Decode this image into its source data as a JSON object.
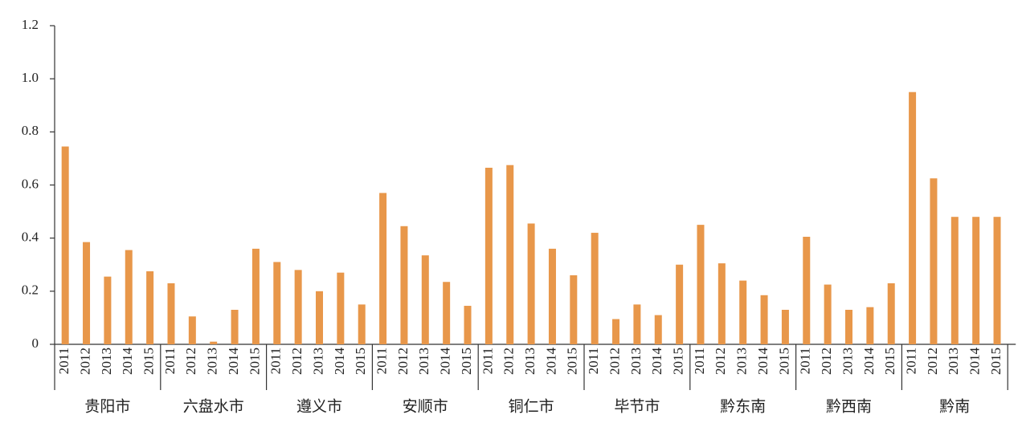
{
  "chart_data": {
    "type": "bar",
    "color": "#e8974a",
    "ylim": [
      0,
      1.2
    ],
    "yticks": [
      0,
      {
        "value": 0.2,
        "label": "0.2"
      },
      {
        "value": 0.4,
        "label": "0.4"
      },
      {
        "value": 0.6,
        "label": "0.6"
      },
      {
        "value": 0.8,
        "label": "0.8"
      },
      {
        "value": 1.0,
        "label": "1.0"
      },
      {
        "value": 1.2,
        "label": "1.2"
      }
    ],
    "groups": [
      {
        "name": "贵阳市",
        "categories": [
          "2011",
          "2012",
          "2013",
          "2014",
          "2015"
        ],
        "values": [
          0.745,
          0.385,
          0.255,
          0.355,
          0.275
        ]
      },
      {
        "name": "六盘水市",
        "categories": [
          "2011",
          "2012",
          "2013",
          "2014",
          "2015"
        ],
        "values": [
          0.23,
          0.105,
          0.01,
          0.13,
          0.36
        ]
      },
      {
        "name": "遵义市",
        "categories": [
          "2011",
          "2012",
          "2013",
          "2014",
          "2015"
        ],
        "values": [
          0.31,
          0.28,
          0.2,
          0.27,
          0.15
        ]
      },
      {
        "name": "安顺市",
        "categories": [
          "2011",
          "2012",
          "2013",
          "2014",
          "2015"
        ],
        "values": [
          0.57,
          0.445,
          0.335,
          0.235,
          0.145
        ]
      },
      {
        "name": "铜仁市",
        "categories": [
          "2011",
          "2012",
          "2013",
          "2014",
          "2015"
        ],
        "values": [
          0.665,
          0.675,
          0.455,
          0.36,
          0.26
        ]
      },
      {
        "name": "毕节市",
        "categories": [
          "2011",
          "2012",
          "2013",
          "2014",
          "2015"
        ],
        "values": [
          0.42,
          0.095,
          0.15,
          0.11,
          0.3
        ]
      },
      {
        "name": "黔东南",
        "categories": [
          "2011",
          "2012",
          "2013",
          "2014",
          "2015"
        ],
        "values": [
          0.45,
          0.305,
          0.24,
          0.185,
          0.13
        ]
      },
      {
        "name": "黔西南",
        "categories": [
          "2011",
          "2012",
          "2013",
          "2014",
          "2015"
        ],
        "values": [
          0.405,
          0.225,
          0.13,
          0.14,
          0.23
        ]
      },
      {
        "name": "黔南",
        "categories": [
          "2011",
          "2012",
          "2013",
          "2014",
          "2015"
        ],
        "values": [
          0.95,
          0.625,
          0.48,
          0.48,
          0.48
        ]
      }
    ]
  }
}
